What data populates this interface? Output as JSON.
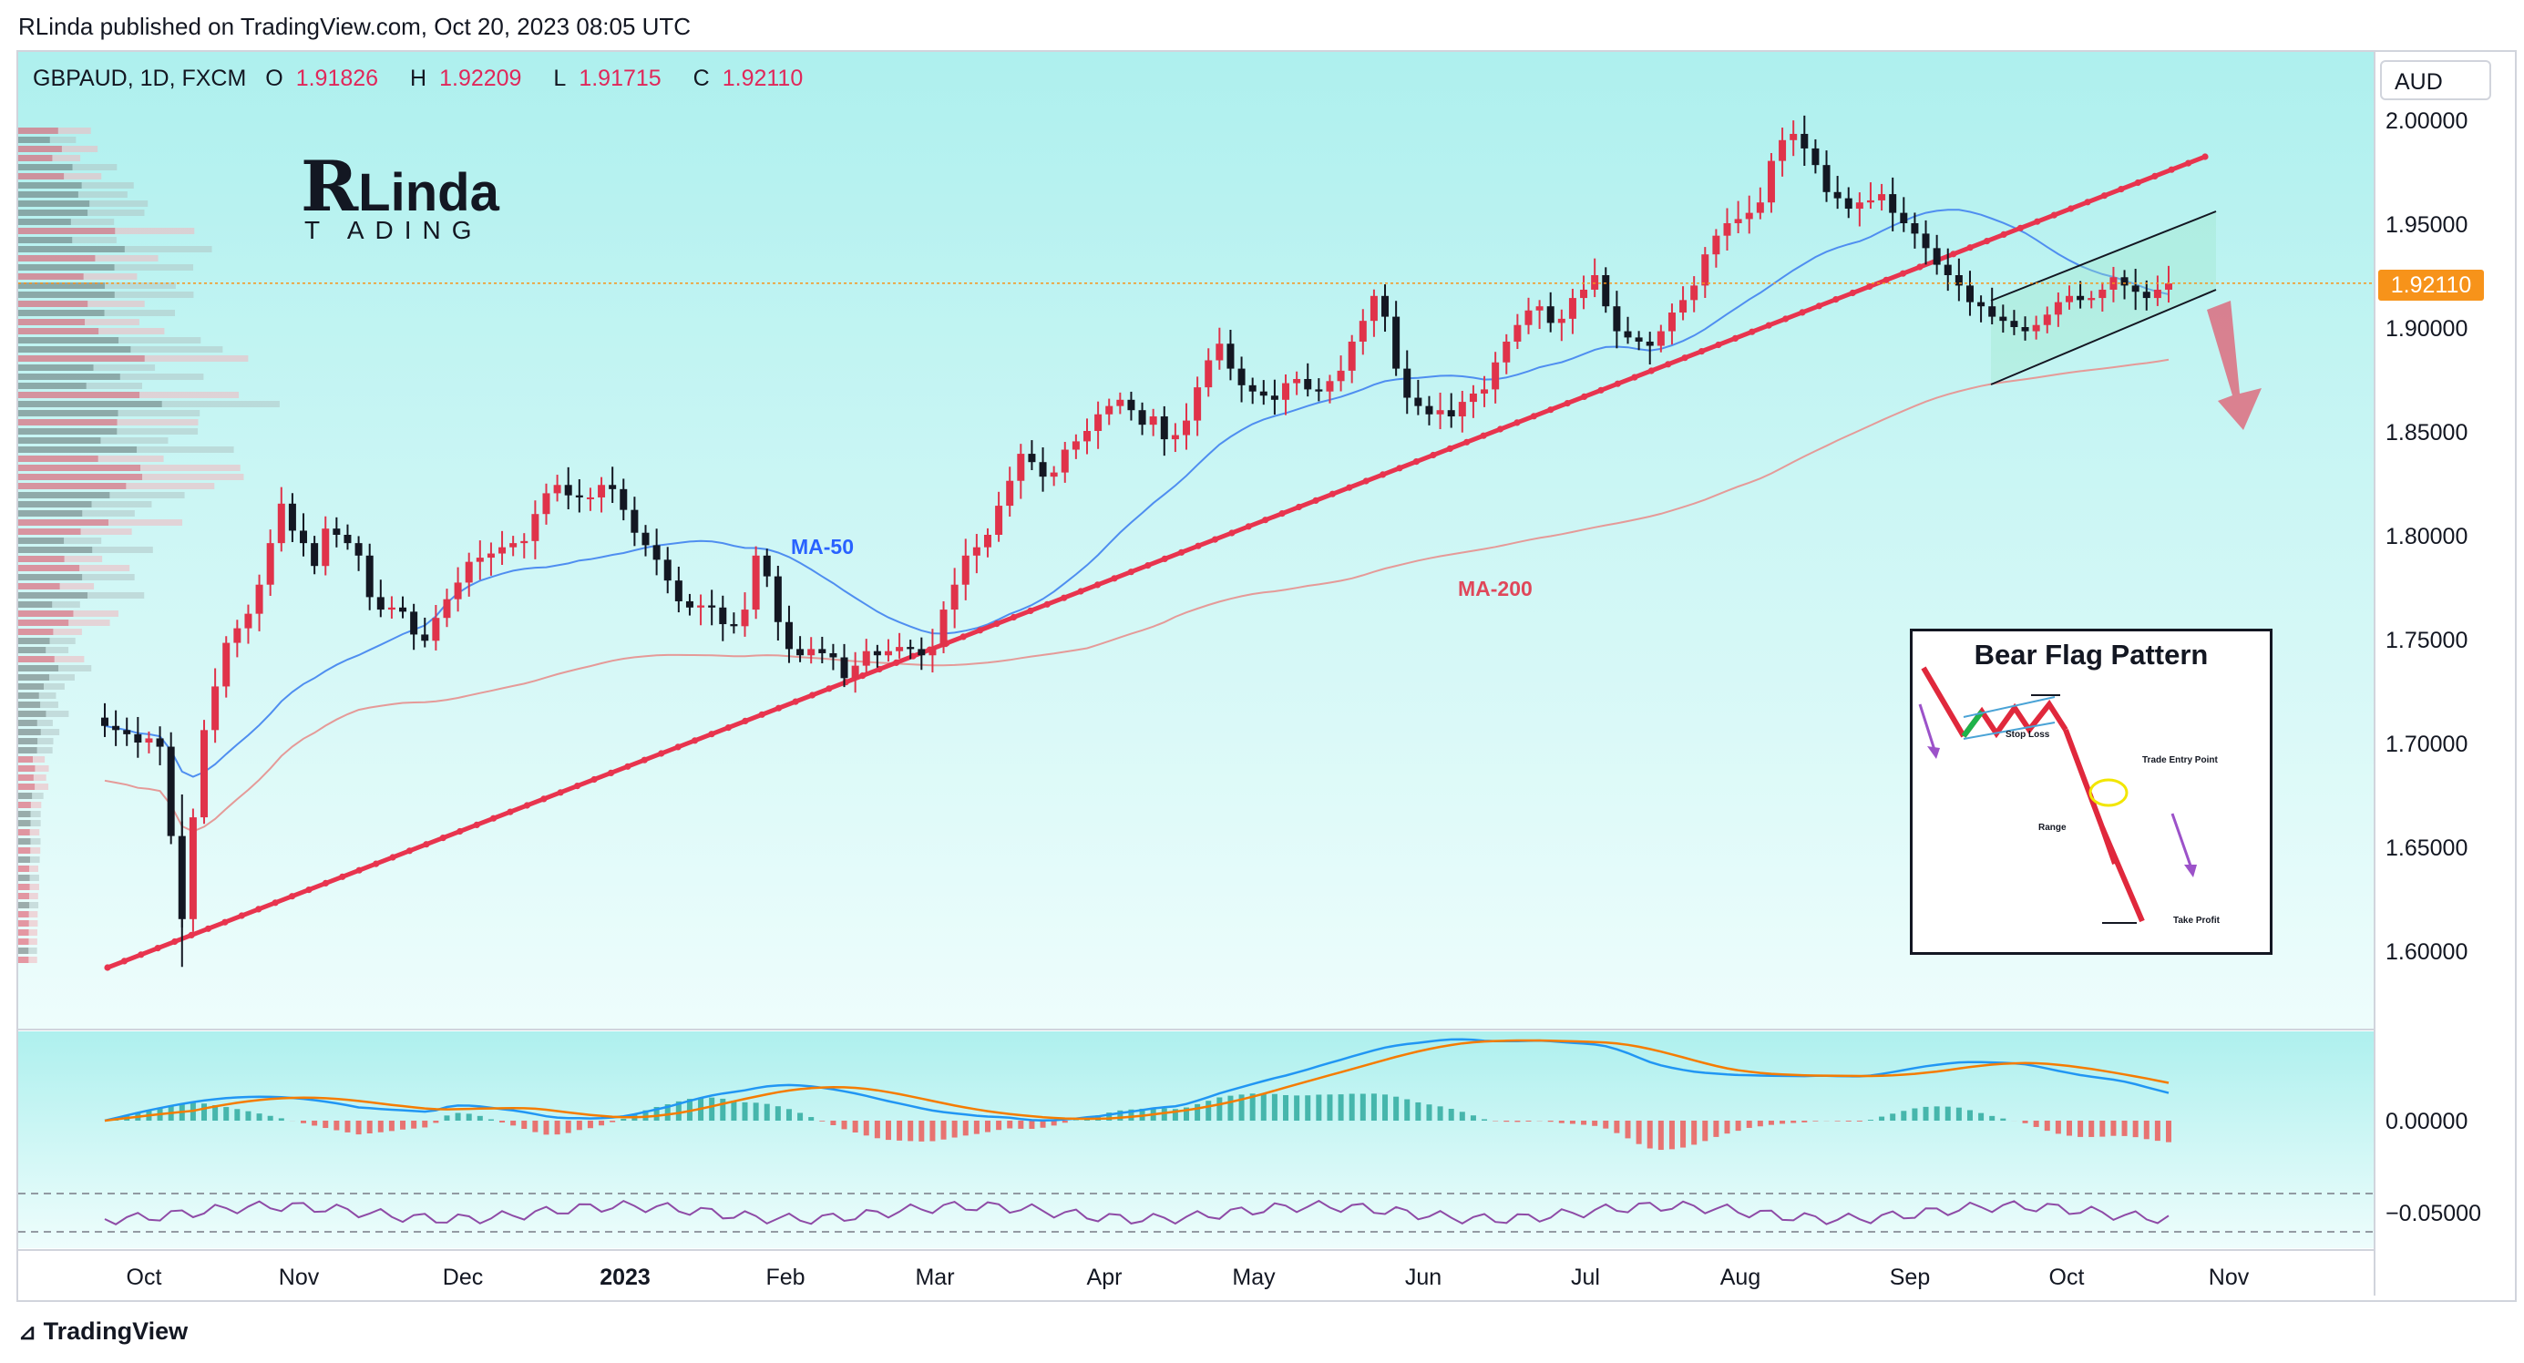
{
  "header": {
    "publisher": "RLinda published on TradingView.com, Oct 20, 2023 08:05 UTC"
  },
  "symbol": {
    "name": "GBPAUD, 1D, FXCM",
    "o_label": "O",
    "o": "1.91826",
    "h_label": "H",
    "h": "1.92209",
    "l_label": "L",
    "l": "1.91715",
    "c_label": "C",
    "c": "1.92110"
  },
  "currency": "AUD",
  "current_price": "1.92110",
  "brand": {
    "r": "R",
    "linda": "Linda",
    "trading": "T  ADING"
  },
  "labels": {
    "ma50": "MA-50",
    "ma200": "MA-200"
  },
  "footer": {
    "tradingview": "TradingView"
  },
  "bear_flag": {
    "title": "Bear Flag Pattern",
    "stop_loss": "Stop Loss",
    "entry": "Trade Entry Point",
    "range": "Range",
    "take_profit": "Take Profit"
  },
  "colors": {
    "bg_top": "#aef0ee",
    "bg_bottom": "#eefdfc",
    "trendline": "#e8344e",
    "ma50": "#4f8ef0",
    "ma200": "#e59a98",
    "bull": "#e0334a",
    "bear": "#131722",
    "macd": "#2196f3",
    "signal": "#f57c00",
    "rsi": "#8e4ba6",
    "orange": "#f7931a"
  },
  "chart_data": {
    "type": "candlestick",
    "title": "GBPAUD, 1D, FXCM",
    "y_axis": {
      "ticks": [
        "2.00000",
        "1.95000",
        "1.90000",
        "1.85000",
        "1.80000",
        "1.75000",
        "1.70000",
        "1.65000",
        "1.60000"
      ],
      "range": [
        1.565,
        2.035
      ]
    },
    "x_axis": {
      "ticks": [
        "Oct",
        "Nov",
        "Dec",
        "2023",
        "Feb",
        "Mar",
        "Apr",
        "May",
        "Jun",
        "Jul",
        "Aug",
        "Sep",
        "Oct",
        "Nov"
      ]
    },
    "oscillator_ticks": [
      "0.00000",
      "−0.05000"
    ],
    "closes": [
      1.708,
      1.706,
      1.704,
      1.7,
      1.702,
      1.698,
      1.655,
      1.615,
      1.664,
      1.706,
      1.727,
      1.748,
      1.755,
      1.762,
      1.776,
      1.796,
      1.815,
      1.802,
      1.796,
      1.785,
      1.803,
      1.8,
      1.796,
      1.79,
      1.77,
      1.764,
      1.765,
      1.763,
      1.752,
      1.749,
      1.76,
      1.769,
      1.777,
      1.787,
      1.789,
      1.791,
      1.794,
      1.796,
      1.797,
      1.81,
      1.82,
      1.824,
      1.819,
      1.818,
      1.818,
      1.824,
      1.822,
      1.812,
      1.801,
      1.795,
      1.788,
      1.778,
      1.768,
      1.765,
      1.766,
      1.765,
      1.757,
      1.756,
      1.764,
      1.79,
      1.78,
      1.758,
      1.745,
      1.742,
      1.745,
      1.743,
      1.741,
      1.731,
      1.737,
      1.744,
      1.742,
      1.744,
      1.746,
      1.745,
      1.742,
      1.746,
      1.764,
      1.776,
      1.79,
      1.794,
      1.8,
      1.814,
      1.826,
      1.839,
      1.835,
      1.828,
      1.83,
      1.841,
      1.845,
      1.85,
      1.858,
      1.862,
      1.865,
      1.86,
      1.853,
      1.857,
      1.846,
      1.848,
      1.855,
      1.871,
      1.884,
      1.892,
      1.88,
      1.872,
      1.869,
      1.867,
      1.865,
      1.873,
      1.875,
      1.87,
      1.869,
      1.874,
      1.879,
      1.893,
      1.903,
      1.915,
      1.905,
      1.88,
      1.866,
      1.862,
      1.858,
      1.86,
      1.857,
      1.864,
      1.868,
      1.87,
      1.883,
      1.893,
      1.901,
      1.908,
      1.91,
      1.902,
      1.904,
      1.914,
      1.918,
      1.925,
      1.91,
      1.898,
      1.895,
      1.893,
      1.891,
      1.898,
      1.907,
      1.913,
      1.92,
      1.935,
      1.944,
      1.95,
      1.952,
      1.955,
      1.96,
      1.98,
      1.99,
      1.993,
      1.986,
      1.978,
      1.965,
      1.962,
      1.957,
      1.96,
      1.961,
      1.964,
      1.955,
      1.95,
      1.945,
      1.938,
      1.93,
      1.925,
      1.92,
      1.912,
      1.91,
      1.905,
      1.903,
      1.9,
      1.898,
      1.901,
      1.906,
      1.912,
      1.915,
      1.913,
      1.914,
      1.918,
      1.924,
      1.92,
      1.917,
      1.914,
      1.918,
      1.921
    ]
  }
}
